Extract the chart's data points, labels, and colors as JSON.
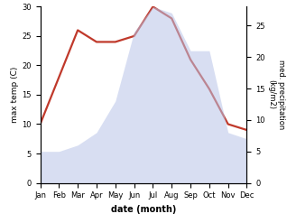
{
  "months": [
    "Jan",
    "Feb",
    "Mar",
    "Apr",
    "May",
    "Jun",
    "Jul",
    "Aug",
    "Sep",
    "Oct",
    "Nov",
    "Dec"
  ],
  "temperature": [
    10,
    18,
    26,
    24,
    24,
    25,
    30,
    28,
    21,
    16,
    10,
    9
  ],
  "precipitation": [
    5,
    5,
    6,
    8,
    13,
    24,
    28,
    27,
    21,
    21,
    8,
    7
  ],
  "temp_color": "#c0392b",
  "precip_color_fill": "#b8c4e8",
  "ylabel_left": "max temp (C)",
  "ylabel_right": "med. precipitation\n(kg/m2)",
  "xlabel": "date (month)",
  "ylim_left": [
    0,
    30
  ],
  "ylim_right": [
    0,
    28
  ],
  "right_ticks": [
    0,
    5,
    10,
    15,
    20,
    25
  ],
  "left_ticks": [
    0,
    5,
    10,
    15,
    20,
    25,
    30
  ],
  "background_color": "#ffffff",
  "temp_linewidth": 1.6,
  "precip_alpha": 0.55
}
